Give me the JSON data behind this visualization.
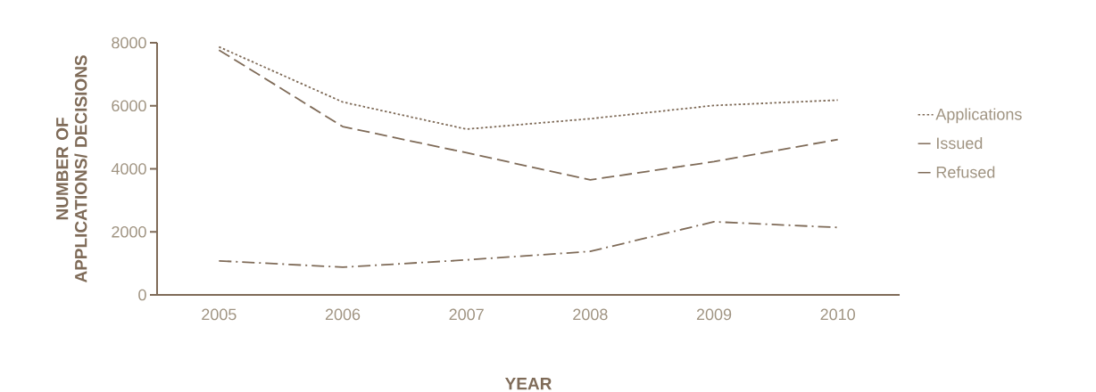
{
  "chart_data": {
    "type": "line",
    "xlabel": "YEAR",
    "ylabel": "NUMBER OF APPLICATIONS/ DECISIONS",
    "categories": [
      "2005",
      "2006",
      "2007",
      "2008",
      "2009",
      "2010"
    ],
    "series": [
      {
        "name": "Applications",
        "color": "#7f6b58",
        "line_style": "dotted",
        "values": [
          7870,
          6120,
          5260,
          5590,
          6010,
          6180
        ]
      },
      {
        "name": "Issued",
        "color": "#7f6b58",
        "line_style": "dashed",
        "values": [
          7770,
          5340,
          4510,
          3650,
          4230,
          4930
        ]
      },
      {
        "name": "Refused",
        "color": "#7f6b58",
        "line_style": "dashdot",
        "values": [
          1080,
          880,
          1110,
          1380,
          2320,
          2140
        ]
      }
    ],
    "ylim": [
      0,
      8000
    ],
    "yticks": [
      0,
      2000,
      4000,
      6000,
      8000
    ],
    "grid": false,
    "legend": "right",
    "marker": "none"
  }
}
